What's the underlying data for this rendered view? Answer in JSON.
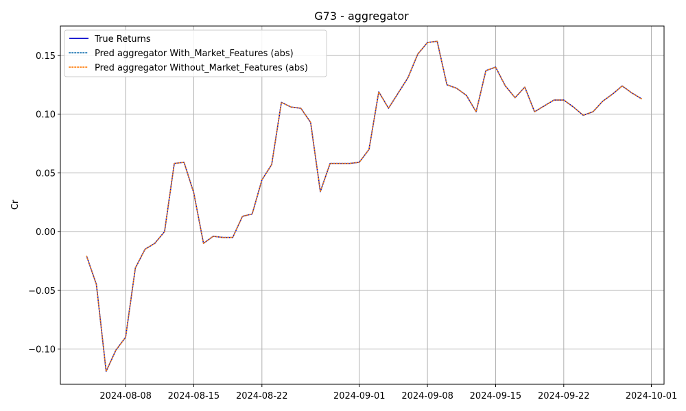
{
  "chart_data": {
    "type": "line",
    "title": "G73 - aggregator",
    "xlabel": "",
    "ylabel": "Cr",
    "x_type": "date",
    "xlim": [
      "2024-08-01",
      "2024-10-02"
    ],
    "ylim": [
      -0.13,
      0.175
    ],
    "xticks": [
      "2024-08-08",
      "2024-08-15",
      "2024-08-22",
      "2024-09-01",
      "2024-09-08",
      "2024-09-15",
      "2024-09-22",
      "2024-10-01"
    ],
    "yticks": [
      -0.1,
      -0.05,
      0.0,
      0.05,
      0.1,
      0.15
    ],
    "ytick_labels": [
      "−0.10",
      "−0.05",
      "0.00",
      "0.05",
      "0.10",
      "0.15"
    ],
    "grid": true,
    "legend_position": "top-left",
    "x": [
      "2024-08-04",
      "2024-08-05",
      "2024-08-06",
      "2024-08-07",
      "2024-08-08",
      "2024-08-09",
      "2024-08-10",
      "2024-08-11",
      "2024-08-12",
      "2024-08-13",
      "2024-08-14",
      "2024-08-15",
      "2024-08-16",
      "2024-08-17",
      "2024-08-18",
      "2024-08-19",
      "2024-08-20",
      "2024-08-21",
      "2024-08-22",
      "2024-08-23",
      "2024-08-24",
      "2024-08-25",
      "2024-08-26",
      "2024-08-27",
      "2024-08-28",
      "2024-08-29",
      "2024-08-30",
      "2024-08-31",
      "2024-09-01",
      "2024-09-02",
      "2024-09-03",
      "2024-09-04",
      "2024-09-05",
      "2024-09-06",
      "2024-09-07",
      "2024-09-08",
      "2024-09-09",
      "2024-09-10",
      "2024-09-11",
      "2024-09-12",
      "2024-09-13",
      "2024-09-14",
      "2024-09-15",
      "2024-09-16",
      "2024-09-17",
      "2024-09-18",
      "2024-09-19",
      "2024-09-20",
      "2024-09-21",
      "2024-09-22",
      "2024-09-23",
      "2024-09-24",
      "2024-09-25",
      "2024-09-26",
      "2024-09-27",
      "2024-09-28",
      "2024-09-29",
      "2024-09-30"
    ],
    "series": [
      {
        "name": "True Returns",
        "color": "#0000cc",
        "style": "solid",
        "values": [
          -0.021,
          -0.045,
          -0.119,
          -0.101,
          -0.09,
          -0.031,
          -0.015,
          -0.01,
          0.0,
          0.058,
          0.059,
          0.033,
          -0.01,
          -0.004,
          -0.005,
          -0.005,
          0.013,
          0.015,
          0.044,
          0.057,
          0.11,
          0.106,
          0.105,
          0.093,
          0.034,
          0.058,
          0.058,
          0.058,
          0.059,
          0.07,
          0.119,
          0.105,
          0.118,
          0.131,
          0.151,
          0.161,
          0.162,
          0.125,
          0.122,
          0.116,
          0.102,
          0.137,
          0.14,
          0.124,
          0.114,
          0.123,
          0.102,
          0.107,
          0.112,
          0.112,
          0.106,
          0.099,
          0.102,
          0.111,
          0.117,
          0.124,
          0.118,
          0.113
        ]
      },
      {
        "name": "Pred aggregator With_Market_Features (abs)",
        "color": "#1f77b4",
        "style": "dotted",
        "values": [
          -0.021,
          -0.045,
          -0.119,
          -0.101,
          -0.09,
          -0.031,
          -0.015,
          -0.01,
          0.0,
          0.058,
          0.059,
          0.033,
          -0.01,
          -0.004,
          -0.005,
          -0.005,
          0.013,
          0.015,
          0.044,
          0.057,
          0.11,
          0.106,
          0.105,
          0.093,
          0.034,
          0.058,
          0.058,
          0.058,
          0.059,
          0.07,
          0.119,
          0.105,
          0.118,
          0.131,
          0.151,
          0.161,
          0.162,
          0.125,
          0.122,
          0.116,
          0.102,
          0.137,
          0.14,
          0.124,
          0.114,
          0.123,
          0.102,
          0.107,
          0.112,
          0.112,
          0.106,
          0.099,
          0.102,
          0.111,
          0.117,
          0.124,
          0.118,
          0.113
        ]
      },
      {
        "name": "Pred aggregator Without_Market_Features (abs)",
        "color": "#ff7f0e",
        "style": "dotted",
        "values": [
          -0.021,
          -0.045,
          -0.119,
          -0.101,
          -0.09,
          -0.031,
          -0.015,
          -0.01,
          0.0,
          0.058,
          0.059,
          0.033,
          -0.01,
          -0.004,
          -0.005,
          -0.005,
          0.013,
          0.015,
          0.044,
          0.057,
          0.11,
          0.106,
          0.105,
          0.093,
          0.034,
          0.058,
          0.058,
          0.058,
          0.059,
          0.07,
          0.119,
          0.105,
          0.118,
          0.131,
          0.151,
          0.161,
          0.162,
          0.125,
          0.122,
          0.116,
          0.102,
          0.137,
          0.14,
          0.124,
          0.114,
          0.123,
          0.102,
          0.107,
          0.112,
          0.112,
          0.106,
          0.099,
          0.102,
          0.111,
          0.117,
          0.124,
          0.118,
          0.113
        ]
      }
    ]
  }
}
